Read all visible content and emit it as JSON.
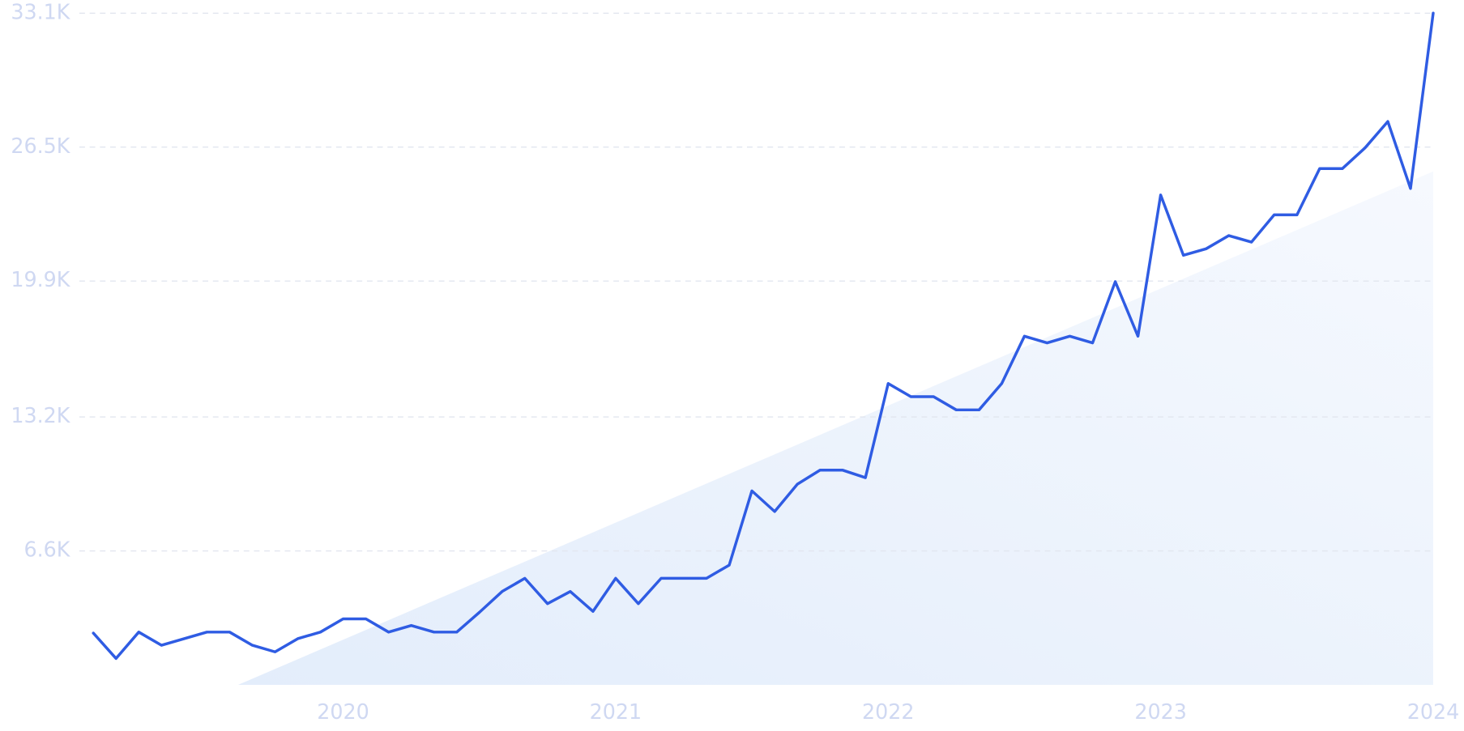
{
  "chart_data": {
    "type": "line",
    "categories": [
      null,
      null,
      null,
      null,
      null,
      null,
      null,
      null,
      null,
      null,
      null,
      "2020",
      null,
      null,
      null,
      null,
      null,
      null,
      null,
      null,
      null,
      null,
      null,
      "2021",
      null,
      null,
      null,
      null,
      null,
      null,
      null,
      null,
      null,
      null,
      null,
      "2022",
      null,
      null,
      null,
      null,
      null,
      null,
      null,
      null,
      null,
      null,
      null,
      "2023",
      null,
      null,
      null,
      null,
      null,
      null,
      null,
      null,
      null,
      null,
      null,
      "2024"
    ],
    "series": [
      {
        "color": "#2f5ce3",
        "values": [
          2550,
          1300,
          2600,
          1950,
          2275,
          2600,
          2600,
          1950,
          1625,
          2275,
          2600,
          3250,
          3250,
          2600,
          2925,
          2600,
          2600,
          3575,
          4600,
          5250,
          4000,
          4600,
          3620,
          5250,
          4000,
          5250,
          5250,
          5250,
          5900,
          9560,
          8540,
          9890,
          10580,
          10580,
          10210,
          14850,
          14200,
          14200,
          13550,
          13550,
          14850,
          17180,
          16850,
          17180,
          16850,
          19870,
          17180,
          24140,
          21170,
          21490,
          22140,
          21820,
          23160,
          23160,
          25440,
          25440,
          26460,
          27760,
          24460,
          33100
        ]
      }
    ],
    "ylim": [
      0,
      33100
    ],
    "yticks": [
      {
        "value": 6600,
        "label": "6.6K"
      },
      {
        "value": 13200,
        "label": "13.2K"
      },
      {
        "value": 19900,
        "label": "19.9K"
      },
      {
        "value": 26500,
        "label": "26.5K"
      },
      {
        "value": 33100,
        "label": "33.1K"
      }
    ],
    "grid": true
  }
}
